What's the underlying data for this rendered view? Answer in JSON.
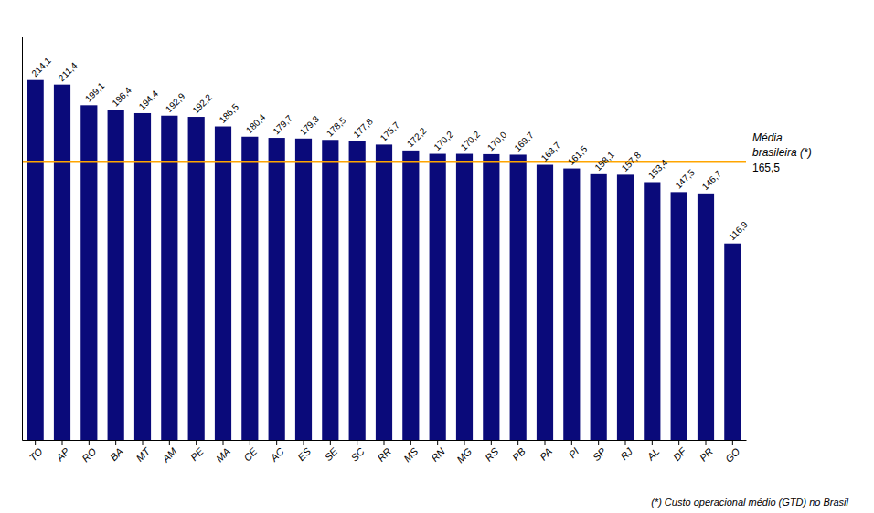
{
  "chart_data": {
    "type": "bar",
    "categories": [
      "TO",
      "AP",
      "RO",
      "BA",
      "MT",
      "AM",
      "PE",
      "MA",
      "CE",
      "AC",
      "ES",
      "SE",
      "SC",
      "RR",
      "MS",
      "RN",
      "MG",
      "RS",
      "PB",
      "PA",
      "PI",
      "SP",
      "RJ",
      "AL",
      "DF",
      "PR",
      "GO"
    ],
    "values": [
      214.1,
      211.4,
      199.1,
      196.4,
      194.4,
      192.9,
      192.2,
      186.5,
      180.4,
      179.7,
      179.3,
      178.5,
      177.8,
      175.7,
      172.2,
      170.2,
      170.2,
      170.0,
      169.7,
      163.7,
      161.5,
      158.1,
      157.8,
      153.4,
      147.5,
      146.7,
      116.9
    ],
    "value_labels": [
      "214,1",
      "211,4",
      "199,1",
      "196,4",
      "194,4",
      "192,9",
      "192,2",
      "186,5",
      "180,4",
      "179,7",
      "179,3",
      "178,5",
      "177,8",
      "175,7",
      "172,2",
      "170,2",
      "170,2",
      "170,0",
      "169,7",
      "163,7",
      "161,5",
      "158,1",
      "157,8",
      "153,4",
      "147,5",
      "146,7",
      "116,9"
    ],
    "data_labels": true,
    "color": "#0a0a7a",
    "ylim": [
      0,
      240
    ],
    "tick_labels": "x",
    "reference_line": {
      "value": 165.5,
      "color": "#FFA500",
      "labels": [
        "Média",
        "brasileira (*)",
        "165,5"
      ]
    },
    "footnote": "(*) Custo operacional médio (GTD) no Brasil"
  }
}
